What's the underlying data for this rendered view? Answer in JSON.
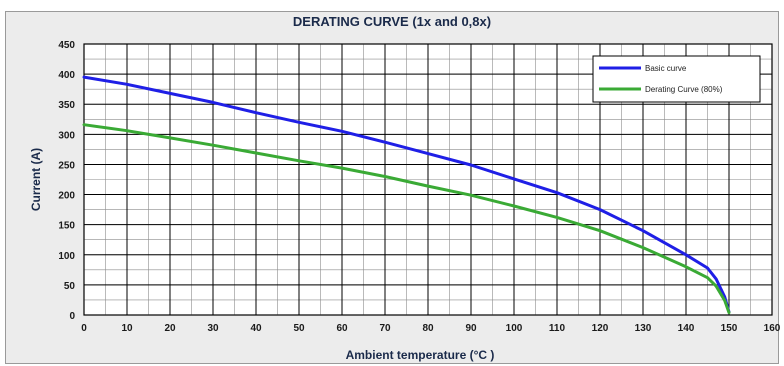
{
  "chart_data": {
    "type": "line",
    "title": "DERATING CURVE (1x and 0,8x)",
    "xlabel": "Ambient temperature  (°C )",
    "ylabel": "Current (A)",
    "xlim": [
      0,
      160
    ],
    "ylim": [
      0,
      450
    ],
    "xticks": [
      "0",
      "10",
      "20",
      "30",
      "40",
      "50",
      "60",
      "70",
      "80",
      "90",
      "100",
      "110",
      "120",
      "130",
      "140",
      "150",
      "160"
    ],
    "yticks": [
      "0",
      "50",
      "100",
      "150",
      "200",
      "250",
      "300",
      "350",
      "400",
      "450"
    ],
    "x_minor_step": 5,
    "y_minor_step": 25,
    "grid": true,
    "legend_position": "top-right",
    "series": [
      {
        "name": "Basic curve",
        "color": "#1f1fe6",
        "x": [
          0,
          10,
          20,
          30,
          40,
          50,
          60,
          70,
          80,
          90,
          100,
          110,
          120,
          130,
          140,
          145,
          147,
          149,
          150
        ],
        "y": [
          395,
          383,
          368,
          353,
          336,
          320,
          305,
          287,
          268,
          249,
          226,
          203,
          175,
          140,
          100,
          78,
          60,
          30,
          5
        ]
      },
      {
        "name": "Derating Curve (80%)",
        "color": "#3aaa35",
        "x": [
          0,
          10,
          20,
          30,
          40,
          50,
          60,
          70,
          80,
          90,
          100,
          110,
          120,
          130,
          140,
          145,
          147,
          149,
          150
        ],
        "y": [
          316,
          306,
          294,
          282,
          269,
          256,
          244,
          230,
          214,
          199,
          181,
          162,
          140,
          112,
          80,
          62,
          48,
          24,
          4
        ]
      }
    ]
  }
}
